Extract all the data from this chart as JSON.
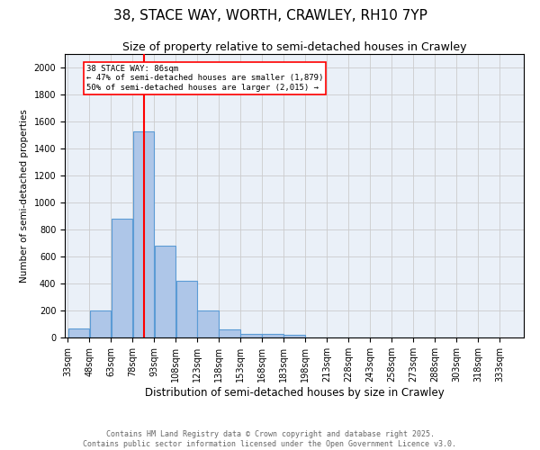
{
  "title1": "38, STACE WAY, WORTH, CRAWLEY, RH10 7YP",
  "title2": "Size of property relative to semi-detached houses in Crawley",
  "xlabel": "Distribution of semi-detached houses by size in Crawley",
  "ylabel": "Number of semi-detached properties",
  "footer1": "Contains HM Land Registry data © Crown copyright and database right 2025.",
  "footer2": "Contains public sector information licensed under the Open Government Licence v3.0.",
  "bin_labels": [
    "33sqm",
    "48sqm",
    "63sqm",
    "78sqm",
    "93sqm",
    "108sqm",
    "123sqm",
    "138sqm",
    "153sqm",
    "168sqm",
    "183sqm",
    "198sqm",
    "213sqm",
    "228sqm",
    "243sqm",
    "258sqm",
    "273sqm",
    "288sqm",
    "303sqm",
    "318sqm",
    "333sqm"
  ],
  "bin_edges": [
    33,
    48,
    63,
    78,
    93,
    108,
    123,
    138,
    153,
    168,
    183,
    198,
    213,
    228,
    243,
    258,
    273,
    288,
    303,
    318,
    333
  ],
  "bar_values": [
    70,
    200,
    880,
    1530,
    680,
    420,
    200,
    60,
    30,
    25,
    20,
    0,
    0,
    0,
    0,
    0,
    0,
    0,
    0,
    0
  ],
  "bar_color": "#aec6e8",
  "bar_edge_color": "#5b9bd5",
  "property_size": 86,
  "red_line_x": 86,
  "annotation_text": "38 STACE WAY: 86sqm\n← 47% of semi-detached houses are smaller (1,879)\n50% of semi-detached houses are larger (2,015) →",
  "annotation_box_color": "white",
  "annotation_box_edge_color": "red",
  "red_line_color": "red",
  "ylim": [
    0,
    2100
  ],
  "yticks": [
    0,
    200,
    400,
    600,
    800,
    1000,
    1200,
    1400,
    1600,
    1800,
    2000
  ],
  "grid_color": "#cccccc",
  "bg_color": "#eaf0f8",
  "title1_fontsize": 11,
  "title2_fontsize": 9,
  "xlabel_fontsize": 8.5,
  "ylabel_fontsize": 7.5,
  "tick_fontsize": 7,
  "footer_fontsize": 6,
  "annotation_fontsize": 6.5
}
